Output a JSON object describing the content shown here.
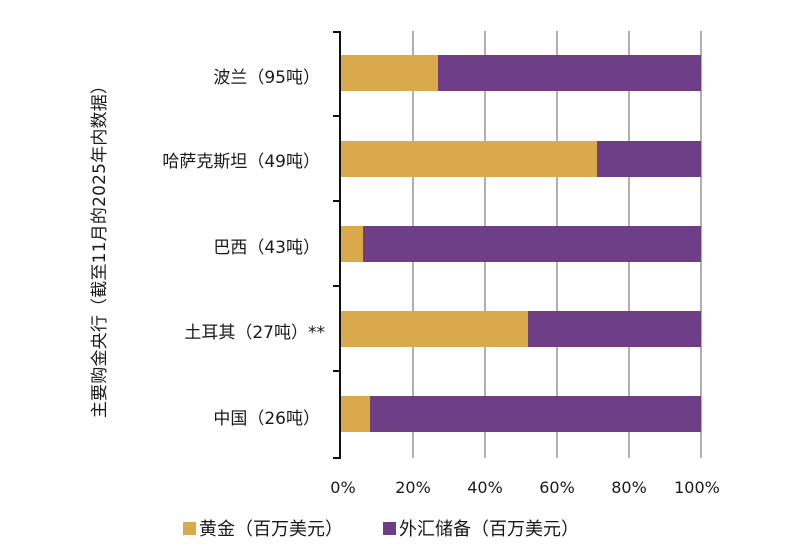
{
  "chart_data": {
    "type": "bar",
    "orientation": "horizontal",
    "stacked": "percent",
    "title": "",
    "ylabel": "主要购金央行（截至11月的2025年内数据）",
    "xlabel": "",
    "xlim": [
      0,
      100
    ],
    "x_ticks": [
      "0%",
      "20%",
      "40%",
      "60%",
      "80%",
      "100%"
    ],
    "grid": "vertical gridlines at each 20%",
    "legend_position": "bottom",
    "categories": [
      "波兰（95吨）",
      "哈萨克斯坦（49吨）",
      "巴西（43吨）",
      "土耳其（27吨）**",
      "中国（26吨）"
    ],
    "series": [
      {
        "name": "黄金（百万美元）",
        "color": "#d9a94c",
        "values": [
          27,
          71,
          6,
          52,
          8
        ]
      },
      {
        "name": "外汇储备（百万美元）",
        "color": "#6e3f87",
        "values": [
          73,
          29,
          94,
          48,
          92
        ]
      }
    ]
  },
  "labels": {
    "ylabel": "主要购金央行（截至11月的2025年内数据）",
    "categories": [
      "波兰（95吨）",
      "哈萨克斯坦（49吨）",
      "巴西（43吨）",
      "土耳其（27吨）**",
      "中国（26吨）"
    ],
    "x_ticks": [
      "0%",
      "20%",
      "40%",
      "60%",
      "80%",
      "100%"
    ],
    "legend": [
      "黄金（百万美元）",
      "外汇储备（百万美元）"
    ]
  },
  "colors": {
    "gold": "#d9a94c",
    "fx": "#6e3f87",
    "grid": "#b0b0b0",
    "axis": "#111111"
  }
}
